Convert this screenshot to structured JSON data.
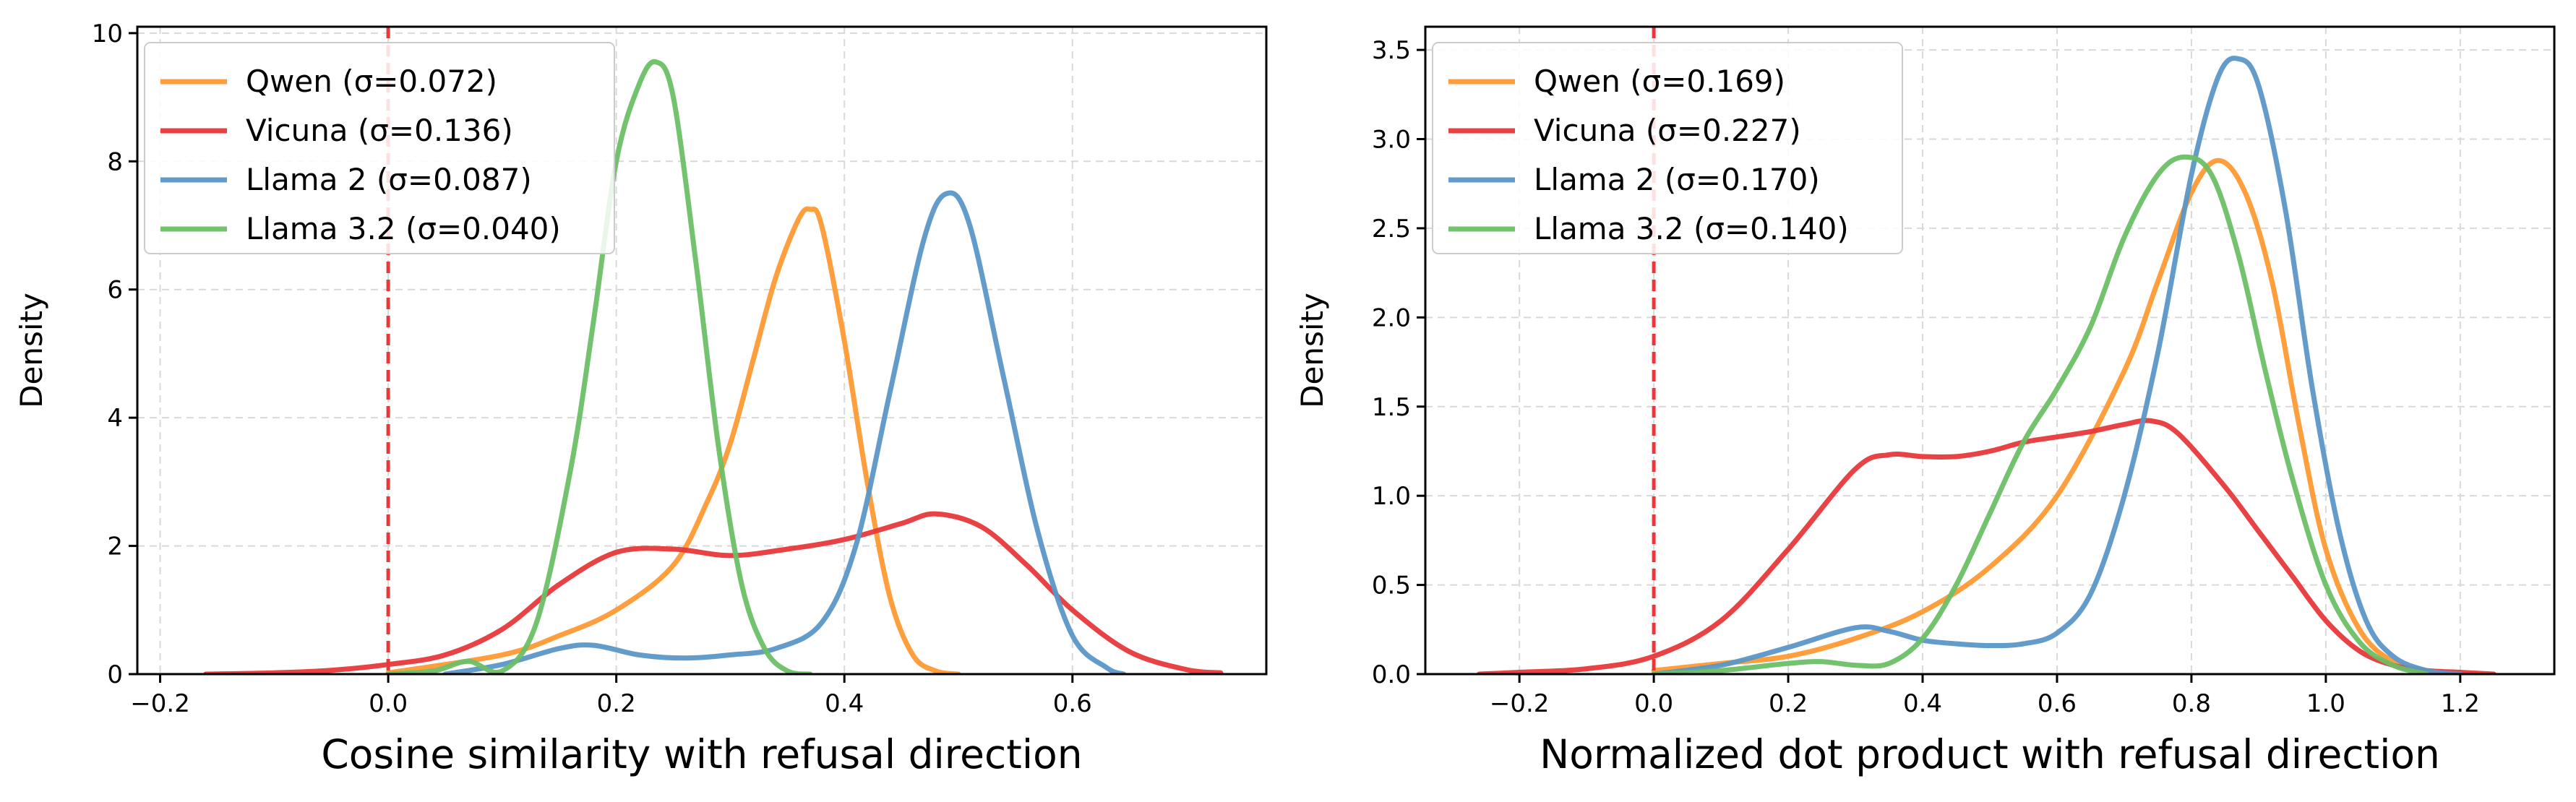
{
  "chart_data": [
    {
      "type": "line",
      "subtype": "kde",
      "xlabel": "Cosine similarity with refusal direction",
      "ylabel": "Density",
      "xlim": [
        -0.22,
        0.77
      ],
      "ylim": [
        0,
        10.1
      ],
      "xticks": [
        -0.2,
        0.0,
        0.2,
        0.4,
        0.6
      ],
      "xtick_labels": [
        "−0.2",
        "0.0",
        "0.2",
        "0.4",
        "0.6"
      ],
      "yticks": [
        0,
        2,
        4,
        6,
        8,
        10
      ],
      "ytick_labels": [
        "0",
        "2",
        "4",
        "6",
        "8",
        "10"
      ],
      "grid": true,
      "legend_position": "top-left",
      "reference_line": {
        "x": 0.0,
        "color": "#e8383b",
        "style": "dashed"
      },
      "series": [
        {
          "name": "Qwen (σ=0.072)",
          "color": "#ff9933",
          "x": [
            0.0,
            0.1,
            0.15,
            0.2,
            0.25,
            0.28,
            0.3,
            0.32,
            0.34,
            0.36,
            0.37,
            0.38,
            0.4,
            0.42,
            0.44,
            0.46,
            0.48,
            0.5
          ],
          "y": [
            0.02,
            0.3,
            0.6,
            1.0,
            1.7,
            2.7,
            3.6,
            4.9,
            6.2,
            7.1,
            7.25,
            7.0,
            5.2,
            3.0,
            1.2,
            0.3,
            0.05,
            0.0
          ]
        },
        {
          "name": "Vicuna (σ=0.136)",
          "color": "#e8383b",
          "x": [
            -0.16,
            -0.1,
            -0.05,
            0.0,
            0.05,
            0.1,
            0.15,
            0.2,
            0.25,
            0.3,
            0.35,
            0.4,
            0.45,
            0.48,
            0.52,
            0.56,
            0.6,
            0.65,
            0.7,
            0.73
          ],
          "y": [
            0.0,
            0.02,
            0.06,
            0.15,
            0.3,
            0.7,
            1.4,
            1.9,
            1.95,
            1.85,
            1.95,
            2.1,
            2.35,
            2.5,
            2.3,
            1.7,
            1.0,
            0.35,
            0.07,
            0.02
          ]
        },
        {
          "name": "Llama 2 (σ=0.087)",
          "color": "#5b97c7",
          "x": [
            0.05,
            0.1,
            0.15,
            0.18,
            0.22,
            0.26,
            0.3,
            0.34,
            0.38,
            0.41,
            0.44,
            0.47,
            0.49,
            0.51,
            0.54,
            0.57,
            0.6,
            0.63,
            0.645
          ],
          "y": [
            0.0,
            0.15,
            0.4,
            0.45,
            0.3,
            0.25,
            0.3,
            0.4,
            0.8,
            2.0,
            4.4,
            6.8,
            7.5,
            7.0,
            4.6,
            2.2,
            0.6,
            0.1,
            0.0
          ]
        },
        {
          "name": "Llama 3.2 (σ=0.040)",
          "color": "#6cbf66",
          "x": [
            0.0,
            0.04,
            0.07,
            0.1,
            0.13,
            0.16,
            0.18,
            0.2,
            0.22,
            0.235,
            0.25,
            0.27,
            0.29,
            0.31,
            0.33,
            0.35,
            0.37
          ],
          "y": [
            0.0,
            0.05,
            0.2,
            0.05,
            0.8,
            3.2,
            5.5,
            8.0,
            9.2,
            9.55,
            9.0,
            6.4,
            3.5,
            1.4,
            0.4,
            0.05,
            0.0
          ]
        }
      ]
    },
    {
      "type": "line",
      "subtype": "kde",
      "xlabel": "Normalized dot product with refusal direction",
      "ylabel": "Density",
      "xlim": [
        -0.34,
        1.34
      ],
      "ylim": [
        0,
        3.63
      ],
      "xticks": [
        -0.2,
        0.0,
        0.2,
        0.4,
        0.6,
        0.8,
        1.0,
        1.2
      ],
      "xtick_labels": [
        "−0.2",
        "0.0",
        "0.2",
        "0.4",
        "0.6",
        "0.8",
        "1.0",
        "1.2"
      ],
      "yticks": [
        0.0,
        0.5,
        1.0,
        1.5,
        2.0,
        2.5,
        3.0,
        3.5
      ],
      "ytick_labels": [
        "0.0",
        "0.5",
        "1.0",
        "1.5",
        "2.0",
        "2.5",
        "3.0",
        "3.5"
      ],
      "grid": true,
      "legend_position": "top-left",
      "reference_line": {
        "x": 0.0,
        "color": "#e8383b",
        "style": "dashed"
      },
      "series": [
        {
          "name": "Qwen (σ=0.169)",
          "color": "#ff9933",
          "x": [
            0.0,
            0.1,
            0.2,
            0.3,
            0.4,
            0.5,
            0.6,
            0.7,
            0.75,
            0.8,
            0.84,
            0.88,
            0.92,
            0.96,
            1.0,
            1.05,
            1.1,
            1.15,
            1.2
          ],
          "y": [
            0.02,
            0.06,
            0.1,
            0.2,
            0.35,
            0.6,
            1.0,
            1.7,
            2.2,
            2.7,
            2.88,
            2.7,
            2.2,
            1.4,
            0.7,
            0.25,
            0.07,
            0.02,
            0.0
          ]
        },
        {
          "name": "Vicuna (σ=0.227)",
          "color": "#e8383b",
          "x": [
            -0.26,
            -0.2,
            -0.1,
            0.0,
            0.1,
            0.2,
            0.3,
            0.35,
            0.4,
            0.45,
            0.5,
            0.55,
            0.6,
            0.65,
            0.7,
            0.74,
            0.78,
            0.85,
            0.9,
            0.95,
            1.0,
            1.05,
            1.1,
            1.15,
            1.2,
            1.25
          ],
          "y": [
            0.0,
            0.01,
            0.03,
            0.1,
            0.3,
            0.7,
            1.15,
            1.23,
            1.22,
            1.22,
            1.25,
            1.3,
            1.33,
            1.36,
            1.4,
            1.42,
            1.35,
            1.05,
            0.8,
            0.55,
            0.3,
            0.13,
            0.05,
            0.02,
            0.01,
            0.0
          ]
        },
        {
          "name": "Llama 2 (σ=0.170)",
          "color": "#5b97c7",
          "x": [
            0.0,
            0.1,
            0.2,
            0.3,
            0.35,
            0.4,
            0.45,
            0.5,
            0.55,
            0.6,
            0.65,
            0.7,
            0.75,
            0.8,
            0.84,
            0.87,
            0.9,
            0.94,
            0.98,
            1.02,
            1.06,
            1.1,
            1.15,
            1.2
          ],
          "y": [
            0.0,
            0.05,
            0.15,
            0.26,
            0.24,
            0.19,
            0.17,
            0.16,
            0.17,
            0.23,
            0.45,
            1.0,
            1.8,
            2.8,
            3.35,
            3.45,
            3.3,
            2.6,
            1.6,
            0.8,
            0.3,
            0.1,
            0.02,
            0.0
          ]
        },
        {
          "name": "Llama 3.2 (σ=0.140)",
          "color": "#6cbf66",
          "x": [
            0.0,
            0.1,
            0.2,
            0.25,
            0.3,
            0.35,
            0.4,
            0.45,
            0.5,
            0.55,
            0.6,
            0.65,
            0.7,
            0.75,
            0.79,
            0.83,
            0.87,
            0.91,
            0.95,
            1.0,
            1.05,
            1.1,
            1.15
          ],
          "y": [
            0.0,
            0.02,
            0.06,
            0.07,
            0.05,
            0.06,
            0.2,
            0.5,
            0.9,
            1.3,
            1.6,
            1.95,
            2.45,
            2.8,
            2.9,
            2.8,
            2.35,
            1.7,
            1.1,
            0.5,
            0.18,
            0.05,
            0.0
          ]
        }
      ]
    }
  ]
}
